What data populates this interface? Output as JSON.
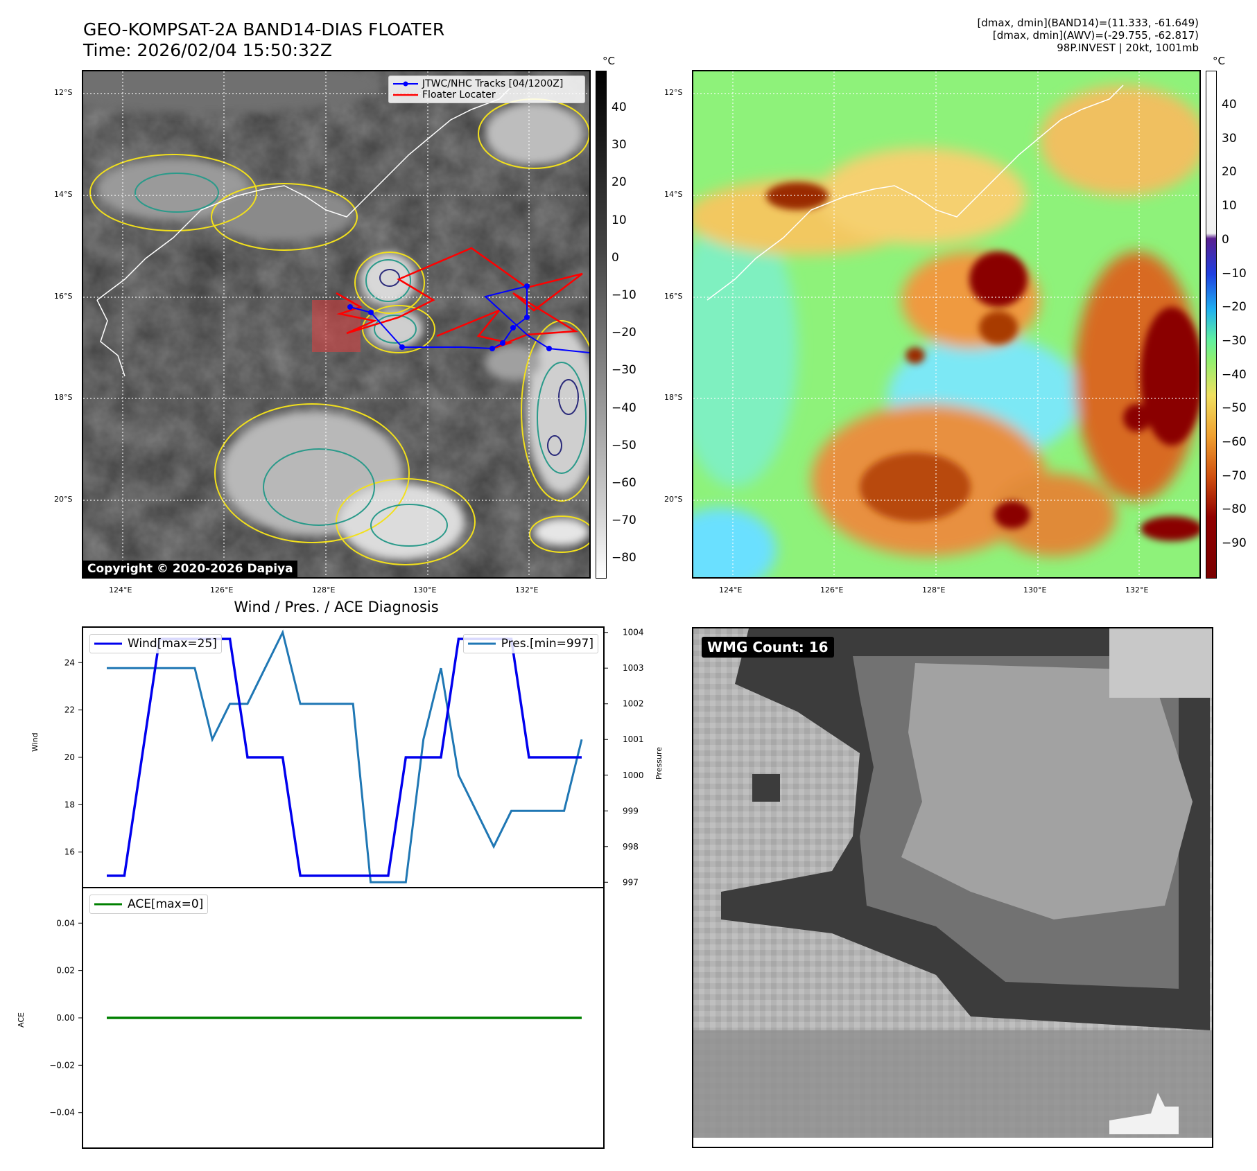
{
  "header": {
    "title_line1": "GEO-KOMPSAT-2A BAND14-DIAS FLOATER",
    "title_line2": "Time: 2026/02/04 15:50:32Z",
    "meta_line1": "[dmax, dmin](BAND14)=(11.333, -61.649)",
    "meta_line2": "[dmax, dmin](AWV)=(-29.755, -62.817)",
    "meta_line3": "98P.INVEST | 20kt, 1001mb"
  },
  "map": {
    "lat_labels": [
      "12°S",
      "14°S",
      "16°S",
      "18°S",
      "20°S"
    ],
    "lon_labels": [
      "124°E",
      "126°E",
      "128°E",
      "130°E",
      "132°E"
    ],
    "legend_track": "JTWC/NHC Tracks [04/1200Z]",
    "legend_floater": "Floater Locater",
    "track_color": "#0000ff",
    "floater_color": "#ff0000",
    "copyright": "Copyright © 2020-2026 Dapiya"
  },
  "colorbar_left": {
    "unit": "°C",
    "ticks": [
      "40",
      "30",
      "20",
      "10",
      "0",
      "−10",
      "−20",
      "−30",
      "−40",
      "−50",
      "−60",
      "−70",
      "−80"
    ]
  },
  "colorbar_right": {
    "unit": "°C",
    "ticks": [
      "40",
      "30",
      "20",
      "10",
      "0",
      "−10",
      "−20",
      "−30",
      "−40",
      "−50",
      "−60",
      "−70",
      "−80",
      "−90"
    ]
  },
  "diagnosis": {
    "title": "Wind / Pres. / ACE Diagnosis",
    "wind_label": "Wind",
    "pressure_label": "Pressure",
    "ace_label": "ACE",
    "wind_legend": "Wind[max=25]",
    "pres_legend": "Pres.[min=997]",
    "ace_legend": "ACE[max=0]",
    "wind_ticks": [
      "24",
      "22",
      "20",
      "18",
      "16"
    ],
    "pres_ticks": [
      "1004",
      "1003",
      "1002",
      "1001",
      "1000",
      "999",
      "998",
      "997"
    ],
    "ace_ticks": [
      "0.04",
      "0.02",
      "0.00",
      "−0.02",
      "−0.04"
    ],
    "wind_color": "#0000ee",
    "pres_color": "#1f77b4",
    "ace_color": "#008000"
  },
  "wmg": {
    "label": "WMG Count: 16"
  },
  "chart_data": [
    {
      "type": "line",
      "title": "Wind / Pres. / ACE Diagnosis",
      "ylabel": "Wind",
      "ylim": [
        14.5,
        25.5
      ],
      "series": [
        {
          "name": "Wind[max=25]",
          "x": [
            0,
            1,
            2,
            3,
            4,
            5,
            6,
            7,
            8,
            9,
            10,
            11,
            12,
            13,
            14,
            15,
            16,
            17,
            18,
            19,
            20,
            21,
            22,
            23,
            24,
            25,
            26,
            27
          ],
          "values": [
            15,
            15,
            20,
            25,
            25,
            25,
            25,
            25,
            20,
            20,
            20,
            15,
            15,
            15,
            15,
            15,
            15,
            20,
            20,
            20,
            25,
            25,
            25,
            25,
            20,
            20,
            20,
            20
          ]
        }
      ]
    },
    {
      "type": "line",
      "ylabel": "Pressure",
      "ylim": [
        996.85,
        1004.15
      ],
      "series": [
        {
          "name": "Pres.[min=997]",
          "x": [
            0,
            1,
            2,
            3,
            4,
            5,
            6,
            7,
            8,
            9,
            10,
            11,
            12,
            13,
            14,
            15,
            16,
            17,
            18,
            19,
            20,
            21,
            22,
            23,
            24,
            25,
            26,
            27
          ],
          "values": [
            1003,
            1003,
            1003,
            1003,
            1003,
            1003,
            1001,
            1002,
            1002,
            1003,
            1004,
            1002,
            1002,
            1002,
            1002,
            997,
            997,
            997,
            1001,
            1003,
            1000,
            999,
            998,
            999,
            999,
            999,
            999,
            1001
          ]
        }
      ]
    },
    {
      "type": "line",
      "ylabel": "ACE",
      "ylim": [
        -0.055,
        0.055
      ],
      "series": [
        {
          "name": "ACE[max=0]",
          "x": [
            0,
            27
          ],
          "values": [
            0,
            0
          ]
        }
      ]
    }
  ]
}
